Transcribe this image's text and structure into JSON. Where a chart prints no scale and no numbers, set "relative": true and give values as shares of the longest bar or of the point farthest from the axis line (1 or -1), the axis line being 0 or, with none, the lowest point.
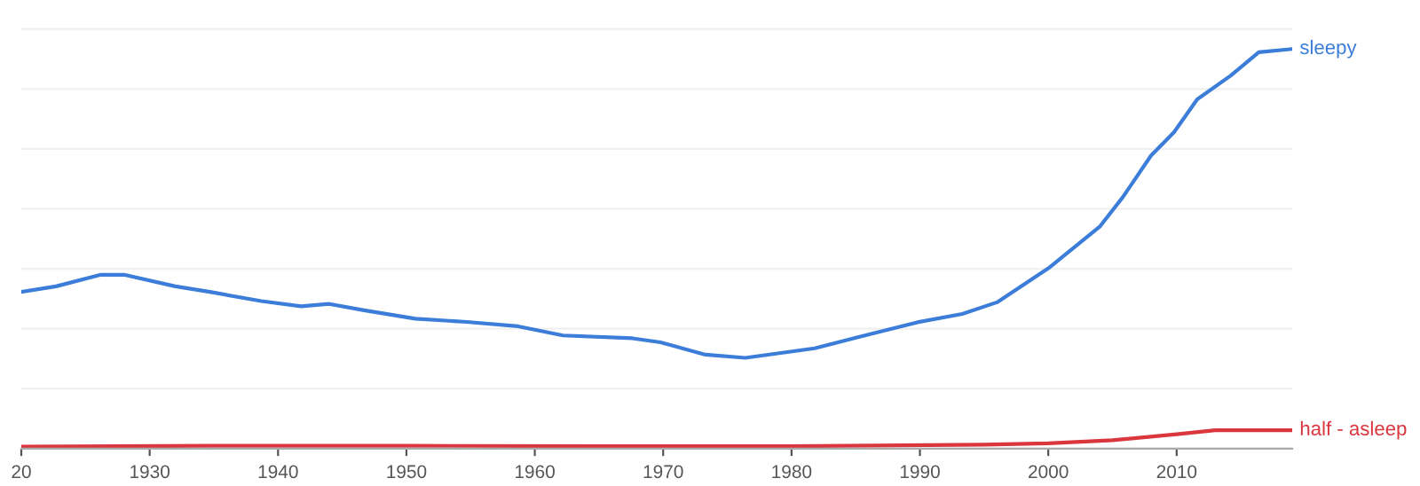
{
  "chart_data": {
    "type": "line",
    "relative": true,
    "grid": "y",
    "legend": false,
    "marker": "none",
    "line_style": "solid",
    "tick_labels": "x",
    "xlim": [
      1920,
      2019
    ],
    "xticks": [
      {
        "value": 1920,
        "label": "20"
      },
      1930,
      1940,
      1950,
      1960,
      1970,
      1980,
      1990,
      2000,
      2010
    ],
    "series": [
      {
        "name": "sleepy",
        "color": "#3b7dd8",
        "x": [
          1920,
          1922.7,
          1926.2,
          1928,
          1932,
          1934.7,
          1938.7,
          1941.8,
          1944,
          1946.7,
          1950.7,
          1954.7,
          1958.7,
          1962.2,
          1967.6,
          1969.8,
          1973.3,
          1976.4,
          1981.8,
          1985.3,
          1989.8,
          1993.3,
          1996,
          2000,
          2004,
          2005.8,
          2008,
          2009.8,
          2011.6,
          2014.2,
          2016.4,
          2019
        ],
        "values": [
          0.392,
          0.406,
          0.435,
          0.435,
          0.406,
          0.392,
          0.369,
          0.356,
          0.362,
          0.346,
          0.325,
          0.317,
          0.306,
          0.283,
          0.276,
          0.266,
          0.235,
          0.227,
          0.251,
          0.28,
          0.316,
          0.337,
          0.366,
          0.451,
          0.555,
          0.629,
          0.733,
          0.792,
          0.874,
          0.933,
          0.992,
          1.0
        ]
      },
      {
        "name": "half - asleep",
        "color": "#d9363e",
        "x": [
          1920,
          1935,
          1950,
          1965,
          1980,
          1995,
          2000,
          2005,
          2010,
          2013,
          2016,
          2019
        ],
        "values": [
          0.005,
          0.007,
          0.007,
          0.006,
          0.006,
          0.01,
          0.013,
          0.021,
          0.036,
          0.046,
          0.046,
          0.046
        ]
      }
    ]
  }
}
